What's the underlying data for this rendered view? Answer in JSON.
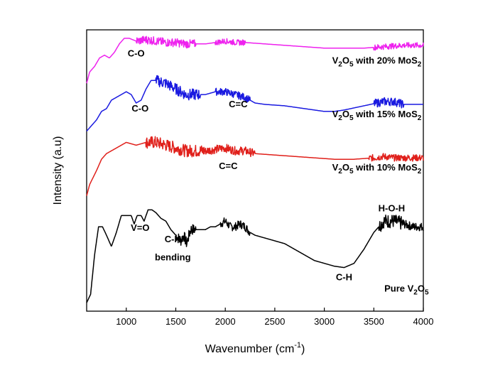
{
  "chart_data": {
    "type": "line",
    "title": "",
    "xlabel": "Wavenumber (cm",
    "xlabel_sup": "-1",
    "xlabel_close": ")",
    "ylabel": "Intensity (a.u)",
    "xlim": [
      600,
      4000
    ],
    "ylim": [
      0,
      100
    ],
    "xticks": [
      1000,
      1500,
      2000,
      2500,
      3000,
      3500,
      4000
    ],
    "grid": false,
    "series": [
      {
        "name": "Pure V2O5",
        "color": "#000000",
        "label_parts": [
          [
            "Pure V",
            ""
          ],
          [
            "2",
            "sub"
          ],
          [
            "O",
            ""
          ],
          [
            "5",
            "sub"
          ]
        ],
        "points": [
          [
            600,
            3
          ],
          [
            640,
            6
          ],
          [
            680,
            20
          ],
          [
            720,
            30
          ],
          [
            760,
            30
          ],
          [
            800,
            27
          ],
          [
            850,
            23
          ],
          [
            900,
            28
          ],
          [
            950,
            34
          ],
          [
            1000,
            34
          ],
          [
            1050,
            34
          ],
          [
            1080,
            31
          ],
          [
            1110,
            34
          ],
          [
            1150,
            34
          ],
          [
            1180,
            32
          ],
          [
            1220,
            36
          ],
          [
            1260,
            36
          ],
          [
            1300,
            35
          ],
          [
            1350,
            33
          ],
          [
            1400,
            32
          ],
          [
            1450,
            29
          ],
          [
            1500,
            27
          ],
          [
            1550,
            25
          ],
          [
            1580,
            27
          ],
          [
            1610,
            24
          ],
          [
            1650,
            29
          ],
          [
            1700,
            29
          ],
          [
            1750,
            29
          ],
          [
            1800,
            29
          ],
          [
            1850,
            30
          ],
          [
            1900,
            30
          ],
          [
            1950,
            31
          ],
          [
            2000,
            32
          ],
          [
            2050,
            30
          ],
          [
            2100,
            30
          ],
          [
            2150,
            31
          ],
          [
            2200,
            30
          ],
          [
            2250,
            28
          ],
          [
            2300,
            27
          ],
          [
            2400,
            26
          ],
          [
            2500,
            25
          ],
          [
            2600,
            24
          ],
          [
            2700,
            22
          ],
          [
            2800,
            20
          ],
          [
            2900,
            18
          ],
          [
            3000,
            17
          ],
          [
            3100,
            16
          ],
          [
            3200,
            15.5
          ],
          [
            3300,
            17
          ],
          [
            3400,
            22
          ],
          [
            3500,
            28
          ],
          [
            3600,
            32
          ],
          [
            3700,
            32
          ],
          [
            3800,
            31
          ],
          [
            3900,
            30
          ],
          [
            4000,
            30
          ]
        ],
        "noise": [
          [
            1500,
            1700,
            2.0
          ],
          [
            1950,
            2250,
            1.5
          ],
          [
            3550,
            3800,
            2.5
          ],
          [
            3800,
            4000,
            1.5
          ]
        ]
      },
      {
        "name": "V2O5 with 10% MoS2",
        "color": "#e0201b",
        "label_parts": [
          [
            "V",
            ""
          ],
          [
            "2",
            "sub"
          ],
          [
            "O",
            ""
          ],
          [
            "5",
            "sub"
          ],
          [
            " with 10% MoS",
            ""
          ],
          [
            "2",
            "sub"
          ]
        ],
        "points": [
          [
            600,
            41
          ],
          [
            630,
            45
          ],
          [
            700,
            50
          ],
          [
            750,
            54
          ],
          [
            800,
            56
          ],
          [
            900,
            58
          ],
          [
            1000,
            60
          ],
          [
            1100,
            59
          ],
          [
            1200,
            60
          ],
          [
            1300,
            60
          ],
          [
            1400,
            59
          ],
          [
            1500,
            58
          ],
          [
            1600,
            57
          ],
          [
            1700,
            57
          ],
          [
            1800,
            57
          ],
          [
            1900,
            57.5
          ],
          [
            2000,
            58
          ],
          [
            2100,
            57
          ],
          [
            2200,
            57
          ],
          [
            2300,
            56
          ],
          [
            2500,
            55.5
          ],
          [
            2700,
            55
          ],
          [
            2900,
            54.5
          ],
          [
            3100,
            54
          ],
          [
            3300,
            54
          ],
          [
            3500,
            54.5
          ],
          [
            3600,
            55
          ],
          [
            3700,
            54.5
          ],
          [
            3800,
            54.5
          ],
          [
            4000,
            54.5
          ]
        ],
        "noise": [
          [
            1200,
            1800,
            2.2
          ],
          [
            1800,
            2300,
            1.5
          ],
          [
            3450,
            4000,
            1.2
          ]
        ]
      },
      {
        "name": "V2O5 with 15% MoS2",
        "color": "#1a1ae0",
        "label_parts": [
          [
            "V",
            ""
          ],
          [
            "2",
            "sub"
          ],
          [
            "O",
            ""
          ],
          [
            "5",
            "sub"
          ],
          [
            " with 15% MoS",
            ""
          ],
          [
            "2",
            "sub"
          ]
        ],
        "points": [
          [
            600,
            64
          ],
          [
            650,
            66
          ],
          [
            700,
            68
          ],
          [
            750,
            71
          ],
          [
            800,
            72
          ],
          [
            850,
            75
          ],
          [
            900,
            76
          ],
          [
            950,
            77
          ],
          [
            1000,
            78
          ],
          [
            1050,
            77
          ],
          [
            1100,
            74
          ],
          [
            1150,
            75
          ],
          [
            1200,
            79
          ],
          [
            1250,
            82
          ],
          [
            1300,
            82
          ],
          [
            1400,
            81
          ],
          [
            1500,
            79
          ],
          [
            1600,
            77
          ],
          [
            1700,
            77
          ],
          [
            1800,
            77
          ],
          [
            1900,
            78
          ],
          [
            2000,
            78
          ],
          [
            2100,
            77
          ],
          [
            2200,
            76
          ],
          [
            2300,
            74
          ],
          [
            2400,
            73.5
          ],
          [
            2600,
            73
          ],
          [
            2800,
            72
          ],
          [
            3000,
            71
          ],
          [
            3100,
            71
          ],
          [
            3200,
            71.5
          ],
          [
            3400,
            73
          ],
          [
            3600,
            74.5
          ],
          [
            3700,
            74.5
          ],
          [
            3800,
            73.5
          ],
          [
            3900,
            73.5
          ],
          [
            4000,
            73.5
          ]
        ],
        "noise": [
          [
            1300,
            1750,
            2.0
          ],
          [
            1900,
            2250,
            1.3
          ],
          [
            3500,
            3800,
            1.5
          ]
        ]
      },
      {
        "name": "V2O5 with 20% MoS2",
        "color": "#ee22ee",
        "label_parts": [
          [
            "V",
            ""
          ],
          [
            "2",
            "sub"
          ],
          [
            "O",
            ""
          ],
          [
            "5",
            "sub"
          ],
          [
            " with 20% MoS",
            ""
          ],
          [
            "2",
            "sub"
          ]
        ],
        "points": [
          [
            600,
            81
          ],
          [
            630,
            85
          ],
          [
            680,
            87
          ],
          [
            730,
            90
          ],
          [
            780,
            91
          ],
          [
            830,
            90
          ],
          [
            880,
            92
          ],
          [
            930,
            95
          ],
          [
            980,
            97
          ],
          [
            1030,
            97
          ],
          [
            1100,
            96
          ],
          [
            1200,
            96.5
          ],
          [
            1300,
            96
          ],
          [
            1400,
            95.5
          ],
          [
            1500,
            95.5
          ],
          [
            1600,
            95
          ],
          [
            1700,
            95
          ],
          [
            1800,
            95
          ],
          [
            1900,
            95.5
          ],
          [
            2000,
            96
          ],
          [
            2100,
            95.5
          ],
          [
            2200,
            95.5
          ],
          [
            2400,
            95
          ],
          [
            2600,
            94.5
          ],
          [
            2800,
            94
          ],
          [
            3000,
            93.5
          ],
          [
            3200,
            93.5
          ],
          [
            3400,
            93.5
          ],
          [
            3600,
            94
          ],
          [
            3800,
            94.5
          ],
          [
            4000,
            94.5
          ]
        ],
        "noise": [
          [
            1100,
            1700,
            1.5
          ],
          [
            1900,
            2200,
            1.0
          ],
          [
            3500,
            4000,
            1.0
          ]
        ]
      }
    ],
    "annotations": [
      {
        "text": "C-O",
        "x": 1100,
        "y": 90.5
      },
      {
        "text": "C-O",
        "x": 1140,
        "y": 71
      },
      {
        "text": "C=C",
        "x": 2130,
        "y": 72.5
      },
      {
        "text": "C=C",
        "x": 2030,
        "y": 50.5
      },
      {
        "text": "V=O",
        "x": 1140,
        "y": 28.5
      },
      {
        "text": "C-H",
        "x": 1470,
        "y": 24.5
      },
      {
        "text": "bending",
        "x": 1470,
        "y": 18
      },
      {
        "text": "C-H",
        "x": 3200,
        "y": 11
      },
      {
        "text": "H-O-H",
        "x": 3680,
        "y": 35.5
      }
    ],
    "series_label_positions": [
      {
        "series": 0,
        "x": 3830,
        "y": 7
      },
      {
        "series": 1,
        "x": 3530,
        "y": 50
      },
      {
        "series": 2,
        "x": 3530,
        "y": 69
      },
      {
        "series": 3,
        "x": 3530,
        "y": 88
      }
    ]
  }
}
